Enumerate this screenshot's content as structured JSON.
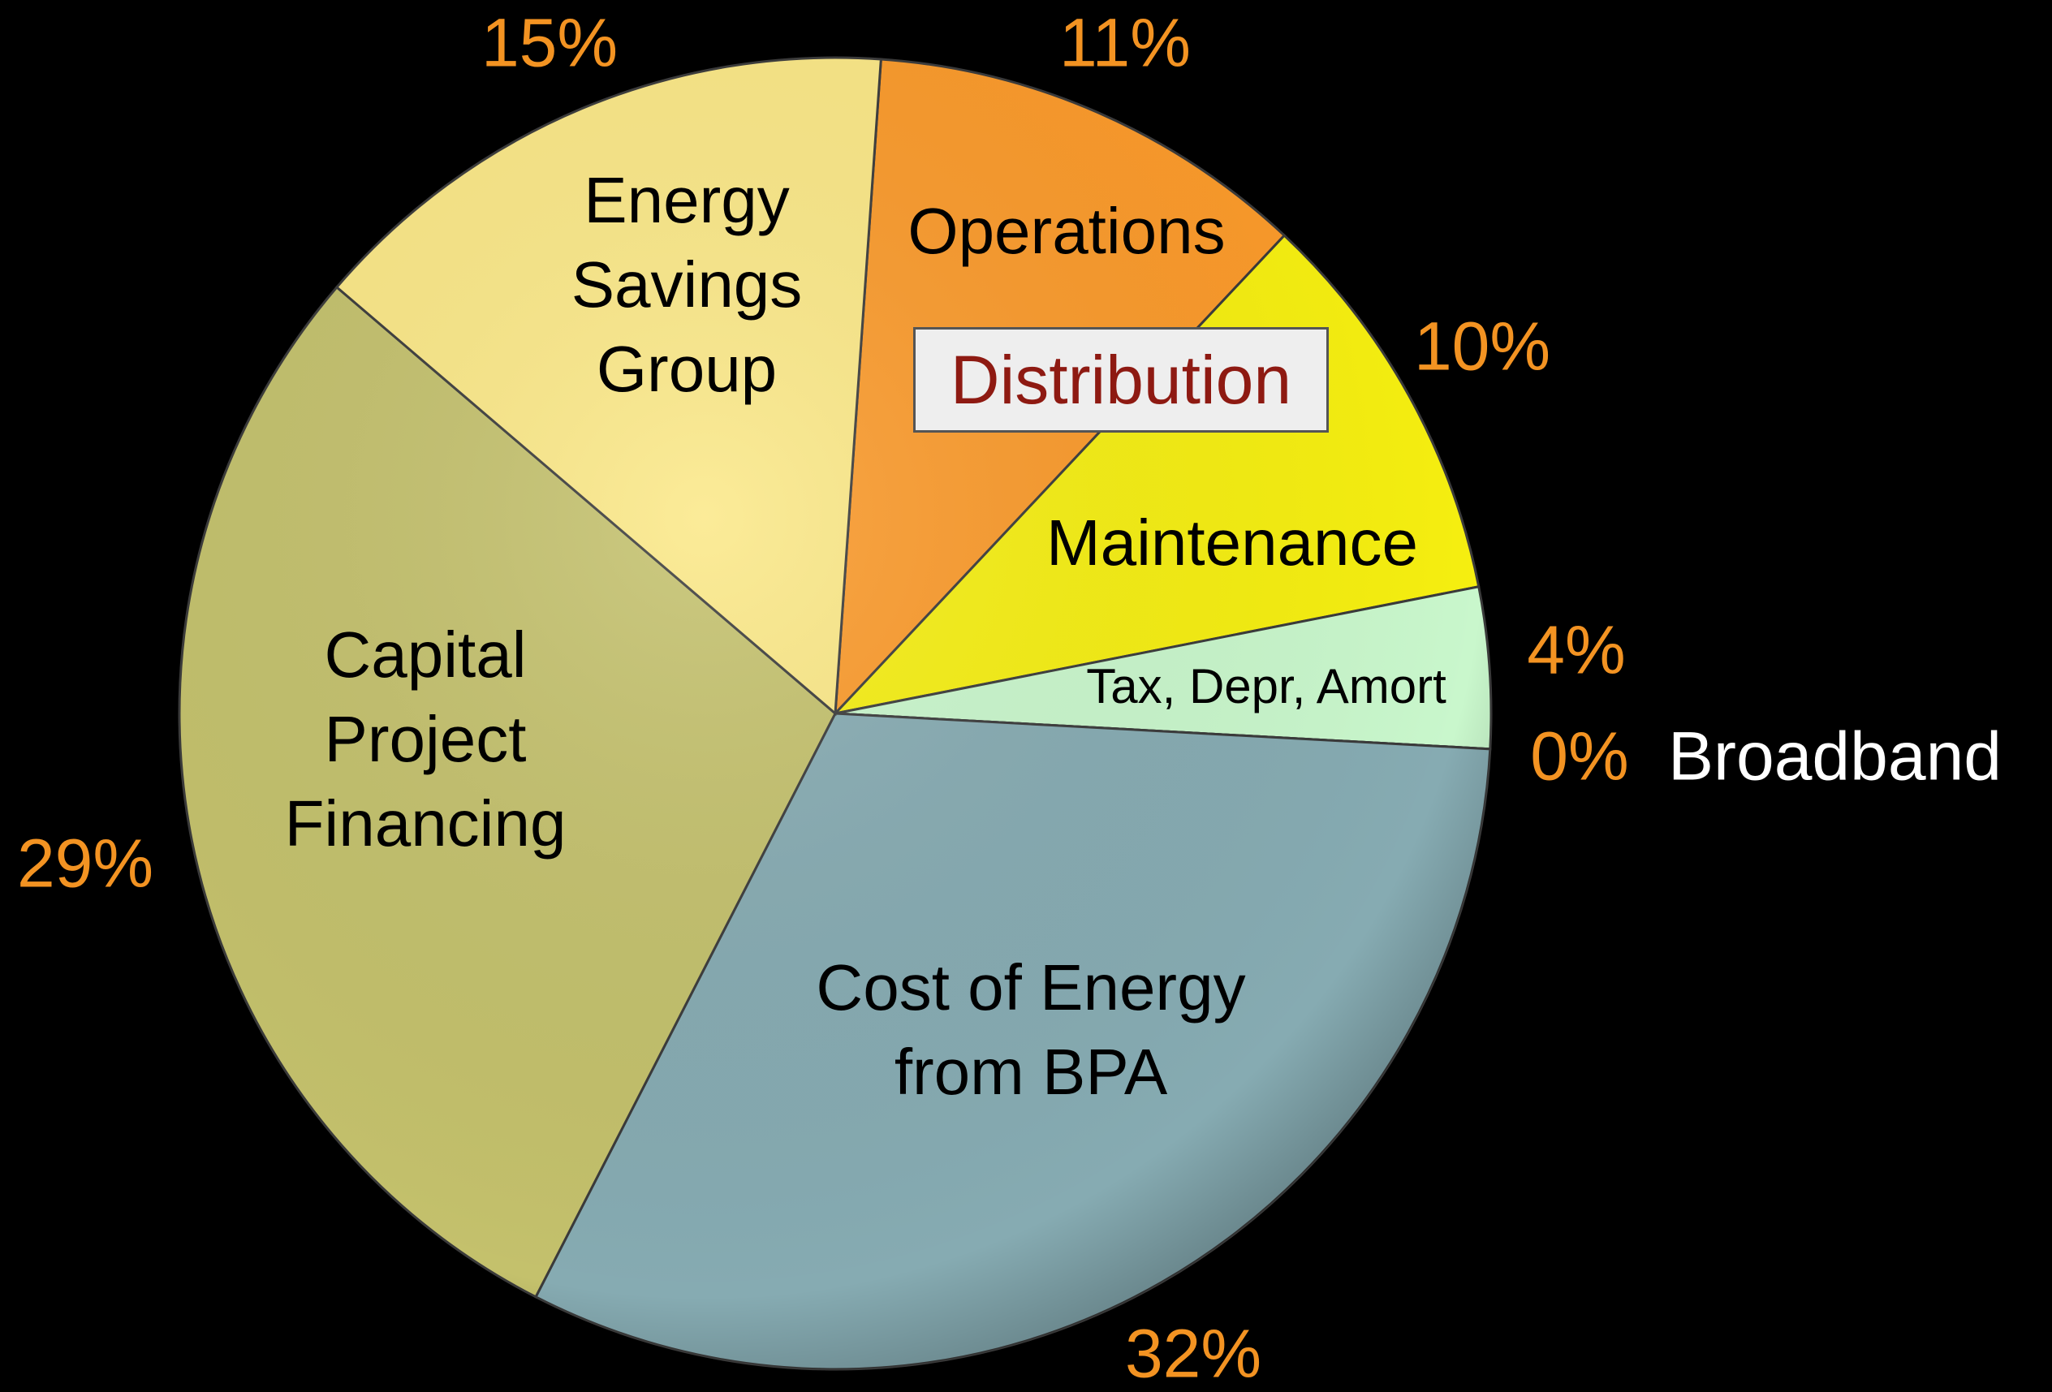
{
  "chart_data": {
    "type": "pie",
    "categories": [
      "Operations",
      "Maintenance",
      "Tax, Depr, Amort",
      "Broadband",
      "Cost of Energy from BPA",
      "Capital Project Financing",
      "Energy Savings Group"
    ],
    "values": [
      11,
      10,
      4,
      0,
      32,
      29,
      15
    ],
    "value_labels": [
      "11%",
      "10%",
      "4%",
      "0%",
      "32%",
      "29%",
      "15%"
    ],
    "colors": [
      "#fb9a2a",
      "#f6ef10",
      "#c9f7cc",
      "#8fb3bb",
      "#86abb2",
      "#c4c16c",
      "#fbe886"
    ],
    "annotation": "Distribution"
  }
}
